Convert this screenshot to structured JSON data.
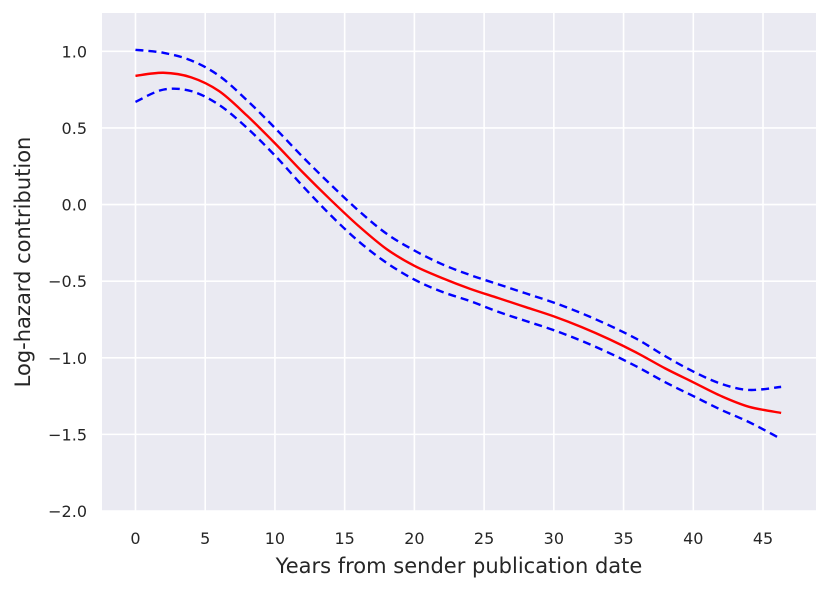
{
  "chart_data": {
    "type": "line",
    "title": "",
    "xlabel": "Years from sender publication date",
    "ylabel": "Log-hazard contribution",
    "xlim": [
      -2.4,
      48.8
    ],
    "ylim": [
      -2.0,
      1.25
    ],
    "x_ticks": [
      0,
      5,
      10,
      15,
      20,
      25,
      30,
      35,
      40,
      45
    ],
    "x_tick_labels": [
      "0",
      "5",
      "10",
      "15",
      "20",
      "25",
      "30",
      "35",
      "40",
      "45"
    ],
    "y_ticks": [
      1.0,
      0.5,
      0.0,
      -0.5,
      -1.0,
      -1.5,
      -2.0
    ],
    "y_tick_labels": [
      "1.0",
      "0.5",
      "0.0",
      "−0.5",
      "−1.0",
      "−1.5",
      "−2.0"
    ],
    "grid": true,
    "background_color": "#eaeaf2",
    "grid_color": "#ffffff",
    "x": [
      0,
      2,
      4,
      6,
      8,
      10,
      12,
      14,
      16,
      18,
      20,
      22,
      24,
      26,
      28,
      30,
      32,
      34,
      36,
      38,
      40,
      42,
      44,
      46.3
    ],
    "series": [
      {
        "role": "estimate",
        "color": "#ff0000",
        "style": "solid",
        "values": [
          0.84,
          0.86,
          0.83,
          0.74,
          0.58,
          0.4,
          0.21,
          0.03,
          -0.14,
          -0.29,
          -0.4,
          -0.48,
          -0.55,
          -0.61,
          -0.67,
          -0.73,
          -0.8,
          -0.88,
          -0.97,
          -1.07,
          -1.16,
          -1.25,
          -1.32,
          -1.36
        ]
      },
      {
        "role": "upper-bound",
        "color": "#0000ff",
        "style": "dashed",
        "values": [
          1.01,
          0.99,
          0.94,
          0.84,
          0.68,
          0.5,
          0.31,
          0.13,
          -0.04,
          -0.19,
          -0.3,
          -0.39,
          -0.46,
          -0.52,
          -0.58,
          -0.64,
          -0.71,
          -0.79,
          -0.88,
          -0.99,
          -1.09,
          -1.17,
          -1.21,
          -1.19
        ]
      },
      {
        "role": "lower-bound",
        "color": "#0000ff",
        "style": "dashed",
        "values": [
          0.67,
          0.75,
          0.74,
          0.65,
          0.5,
          0.32,
          0.12,
          -0.07,
          -0.24,
          -0.38,
          -0.49,
          -0.57,
          -0.63,
          -0.7,
          -0.76,
          -0.82,
          -0.89,
          -0.97,
          -1.06,
          -1.16,
          -1.25,
          -1.34,
          -1.42,
          -1.53
        ]
      }
    ]
  }
}
